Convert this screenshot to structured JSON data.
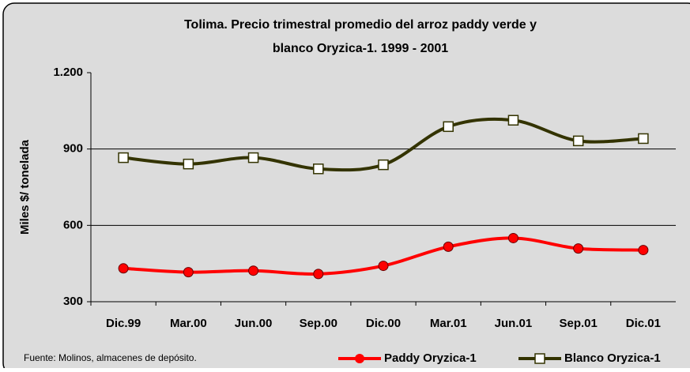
{
  "chart_data": {
    "type": "line",
    "title": [
      "Tolima. Precio trimestral promedio del arroz paddy verde y",
      "blanco Oryzica-1. 1999 - 2001"
    ],
    "y_label": "Miles $/ tonelada",
    "note": "Fuente: Molinos, almacenes de depósito.",
    "categories": [
      "Dic.99",
      "Mar.00",
      "Jun.00",
      "Sep.00",
      "Dic.00",
      "Mar.01",
      "Jun.01",
      "Sep.01",
      "Dic.01"
    ],
    "series": [
      {
        "name": "Paddy Oryzica-1",
        "color": "#ff0000",
        "marker": "circle",
        "values": [
          431,
          416,
          422,
          409,
          441,
          516,
          550,
          509,
          503
        ]
      },
      {
        "name": "Blanco Oryzica-1",
        "color": "#333300",
        "marker": "square",
        "values": [
          866,
          841,
          866,
          822,
          838,
          988,
          1013,
          932,
          941
        ]
      }
    ],
    "ylim": [
      300,
      1200
    ],
    "yticks": [
      300,
      600,
      900,
      {
        "value": 1200,
        "label": "1.200"
      }
    ],
    "grid": true,
    "legend": "bottom"
  }
}
